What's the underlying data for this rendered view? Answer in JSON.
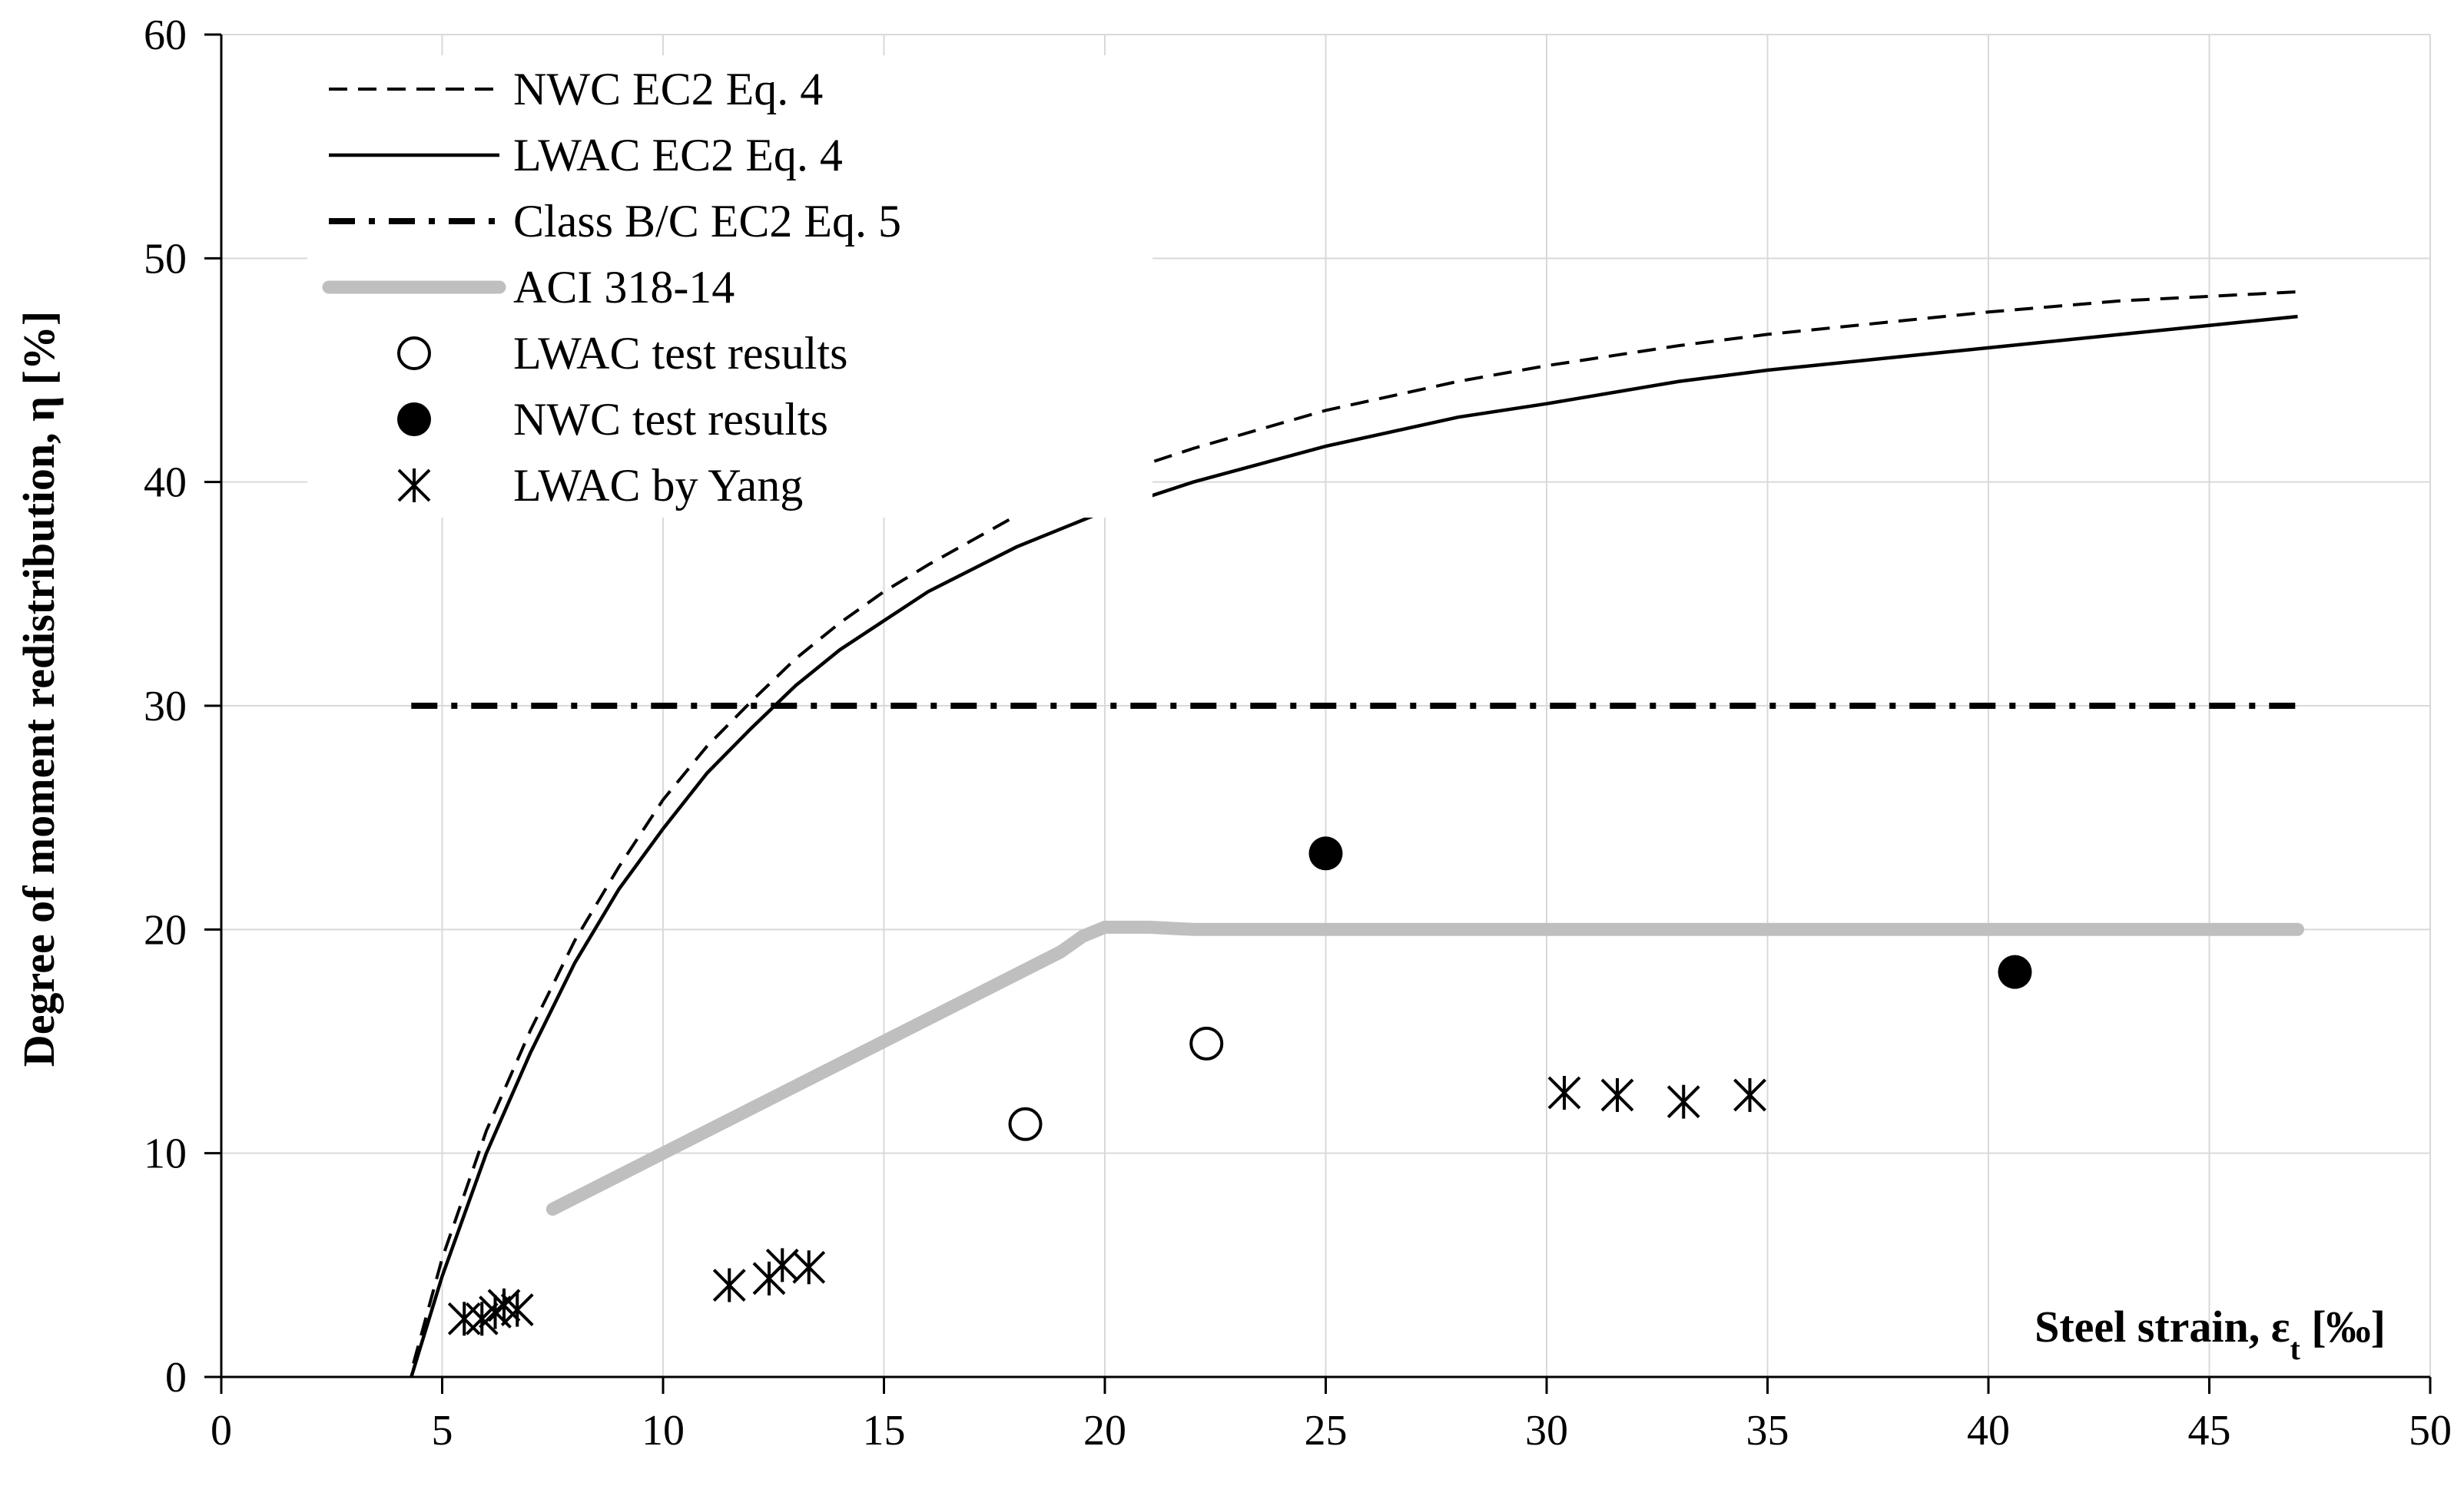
{
  "chart_data": {
    "type": "line",
    "title": "",
    "xlabel": "Steel strain, ε",
    "xlabel_sub": "t",
    "xlabel_unit": " [‰]",
    "ylabel": "Degree of moment redistribution, η [%]",
    "xlim": [
      0,
      50
    ],
    "ylim": [
      0,
      60
    ],
    "xticks": [
      0,
      5,
      10,
      15,
      20,
      25,
      30,
      35,
      40,
      45,
      50
    ],
    "yticks": [
      0,
      10,
      20,
      30,
      40,
      50,
      60
    ],
    "grid": true,
    "legend_position": "top-left",
    "series": [
      {
        "name": "NWC EC2 Eq. 4",
        "style": "dashed",
        "color": "#000000",
        "x": [
          4.35,
          5,
          6,
          7,
          8,
          9,
          10,
          11,
          12,
          13,
          14,
          15,
          16,
          18,
          20,
          22,
          25,
          28,
          30,
          33,
          35,
          38,
          40,
          43,
          45,
          47
        ],
        "y": [
          0.6,
          5.3,
          11.0,
          15.5,
          19.5,
          22.8,
          25.8,
          28.2,
          30.2,
          32.1,
          33.7,
          35.1,
          36.3,
          38.5,
          40.2,
          41.5,
          43.2,
          44.5,
          45.2,
          46.1,
          46.6,
          47.2,
          47.6,
          48.1,
          48.3,
          48.5
        ]
      },
      {
        "name": "LWAC EC2 Eq. 4",
        "style": "solid",
        "color": "#000000",
        "x": [
          4.3,
          5,
          6,
          7,
          8,
          9,
          10,
          11,
          12,
          13,
          14,
          15,
          16,
          18,
          20,
          22,
          25,
          28,
          30,
          33,
          35,
          38,
          40,
          43,
          45,
          47
        ],
        "y": [
          0.0,
          4.5,
          10.0,
          14.5,
          18.5,
          21.8,
          24.5,
          27.0,
          29.0,
          30.9,
          32.5,
          33.8,
          35.1,
          37.1,
          38.7,
          40.0,
          41.6,
          42.9,
          43.5,
          44.5,
          45.0,
          45.6,
          46.0,
          46.6,
          47.0,
          47.4
        ]
      },
      {
        "name": "Class B/C EC2 Eq. 5",
        "style": "dashdot",
        "color": "#000000",
        "x": [
          4.3,
          47
        ],
        "y": [
          30,
          30
        ]
      },
      {
        "name": "ACI 318-14",
        "style": "thick",
        "color": "#bfbfbf",
        "x": [
          7.5,
          10,
          12.5,
          15,
          17.5,
          19,
          19.5,
          20,
          21,
          22,
          25,
          30,
          35,
          40,
          45,
          47
        ],
        "y": [
          7.5,
          10,
          12.5,
          15,
          17.5,
          19,
          19.7,
          20.1,
          20.1,
          20,
          20,
          20,
          20,
          20,
          20,
          20
        ]
      },
      {
        "name": "LWAC test results",
        "marker": "open-circle",
        "color": "#000000",
        "x": [
          18.2,
          22.3
        ],
        "y": [
          11.3,
          14.9
        ]
      },
      {
        "name": "NWC test results",
        "marker": "filled-circle",
        "color": "#000000",
        "x": [
          25.0,
          40.6
        ],
        "y": [
          23.4,
          18.1
        ]
      },
      {
        "name": "LWAC by Yang",
        "marker": "asterisk",
        "color": "#000000",
        "x": [
          5.5,
          5.9,
          6.2,
          6.4,
          6.7,
          11.5,
          12.4,
          12.7,
          13.3,
          30.4,
          31.6,
          33.1,
          34.6
        ],
        "y": [
          2.6,
          2.6,
          2.9,
          3.2,
          3.0,
          4.1,
          4.4,
          5.0,
          4.9,
          12.7,
          12.6,
          12.3,
          12.6
        ]
      }
    ]
  }
}
